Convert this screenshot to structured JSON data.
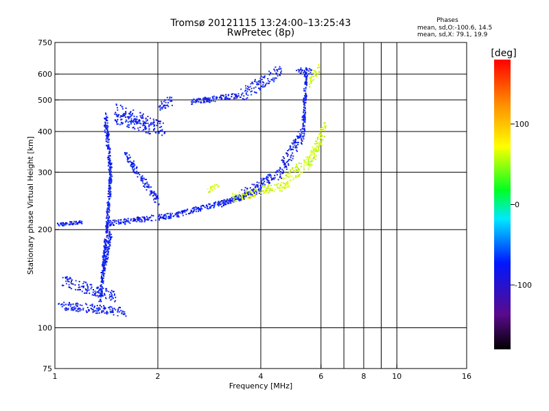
{
  "chart_data": {
    "type": "scatter",
    "title": "Tromsø 20121115 13:24:00–13:25:43",
    "subtitle": "RwPretec (8p)",
    "xlabel": "Frequency [MHz]",
    "ylabel": "Stationary phase Virtual Height [km]",
    "x_scale": "log",
    "y_scale": "log",
    "xlim": [
      1,
      16
    ],
    "ylim": [
      75,
      750
    ],
    "x_ticks": [
      1,
      2,
      4,
      6,
      8,
      10,
      16
    ],
    "x_tick_labels": [
      "1",
      "2",
      "4",
      "6",
      "8",
      "10",
      "16"
    ],
    "x_grid": [
      2,
      4,
      6,
      7,
      8,
      9,
      10
    ],
    "y_ticks": [
      75,
      100,
      200,
      300,
      400,
      500,
      600,
      750
    ],
    "y_tick_labels": [
      "75",
      "100",
      "200",
      "300",
      "400",
      "500",
      "600",
      "750"
    ],
    "y_grid": [
      100,
      200,
      300,
      400,
      500,
      600
    ],
    "grid": true,
    "phase_stats": {
      "header": "Phases",
      "o_line": "mean, sd,O:-100.6, 14.5",
      "x_line": "mean, sd,X: 79.1, 19.9"
    },
    "colorbar": {
      "label": "[deg]",
      "range": [
        -180,
        180
      ],
      "ticks": [
        100,
        0,
        -100
      ],
      "tick_labels": [
        "100",
        "0",
        "-100"
      ],
      "colormap": "rainbow: black-purple-blue-cyan-green-yellow-orange-red"
    },
    "series": [
      {
        "segments": [
          {
            "from": [
              1.02,
              118
            ],
            "to": [
              1.6,
              112
            ],
            "height_scatter": 8
          },
          {
            "from": [
              1.02,
              208
            ],
            "to": [
              1.2,
              212
            ],
            "height_scatter": 3
          },
          {
            "from": [
              1.05,
              140
            ],
            "to": [
              1.5,
              125
            ],
            "height_scatter": 10
          },
          {
            "from": [
              1.35,
              120
            ],
            "to": [
              1.42,
              215
            ],
            "height_scatter": 6
          },
          {
            "from": [
              1.38,
              150
            ],
            "to": [
              1.45,
              195
            ],
            "height_scatter": 8
          },
          {
            "from": [
              1.42,
              210
            ],
            "to": [
              2.2,
              222
            ],
            "height_scatter": 5
          },
          {
            "from": [
              2.2,
              222
            ],
            "to": [
              3.5,
              252
            ],
            "height_scatter": 5
          },
          {
            "from": [
              1.42,
              215
            ],
            "to": [
              1.45,
              300
            ],
            "height_scatter": 10
          },
          {
            "from": [
              1.4,
              445
            ],
            "to": [
              1.45,
              300
            ],
            "height_scatter": 15
          },
          {
            "from": [
              1.5,
              470
            ],
            "to": [
              2.1,
              405
            ],
            "height_scatter": 12
          },
          {
            "from": [
              1.5,
              440
            ],
            "to": [
              1.9,
              410
            ],
            "height_scatter": 10
          },
          {
            "from": [
              1.6,
              340
            ],
            "to": [
              2.0,
              245
            ],
            "height_scatter": 8
          },
          {
            "from": [
              2.0,
              480
            ],
            "to": [
              2.2,
              500
            ],
            "height_scatter": 10
          },
          {
            "from": [
              2.5,
              495
            ],
            "to": [
              3.5,
              520
            ],
            "height_scatter": 5
          },
          {
            "from": [
              3.5,
              520
            ],
            "to": [
              4.6,
              620
            ],
            "height_scatter": 12
          },
          {
            "from": [
              3.5,
              258
            ],
            "to": [
              4.5,
              300
            ],
            "height_scatter": 8
          },
          {
            "from": [
              4.5,
              300
            ],
            "to": [
              5.3,
              400
            ],
            "height_scatter": 15
          },
          {
            "from": [
              5.3,
              400
            ],
            "to": [
              5.4,
              600
            ],
            "height_scatter": 15
          },
          {
            "from": [
              5.1,
              620
            ],
            "to": [
              5.6,
              615
            ],
            "height_scatter": 6
          },
          {
            "from": [
              3.0,
              240
            ],
            "to": [
              4.0,
              265
            ],
            "height_scatter": 6
          }
        ]
      },
      {
        "segments": [
          {
            "from": [
              3.3,
              252
            ],
            "to": [
              4.8,
              275
            ],
            "height_scatter": 8
          },
          {
            "from": [
              4.6,
              280
            ],
            "to": [
              5.6,
              330
            ],
            "height_scatter": 12
          },
          {
            "from": [
              5.5,
              320
            ],
            "to": [
              6.2,
              420
            ],
            "height_scatter": 15
          },
          {
            "from": [
              5.5,
              570
            ],
            "to": [
              5.9,
              630
            ],
            "height_scatter": 10
          },
          {
            "from": [
              2.8,
              265
            ],
            "to": [
              3.0,
              275
            ],
            "height_scatter": 5
          }
        ]
      }
    ]
  }
}
